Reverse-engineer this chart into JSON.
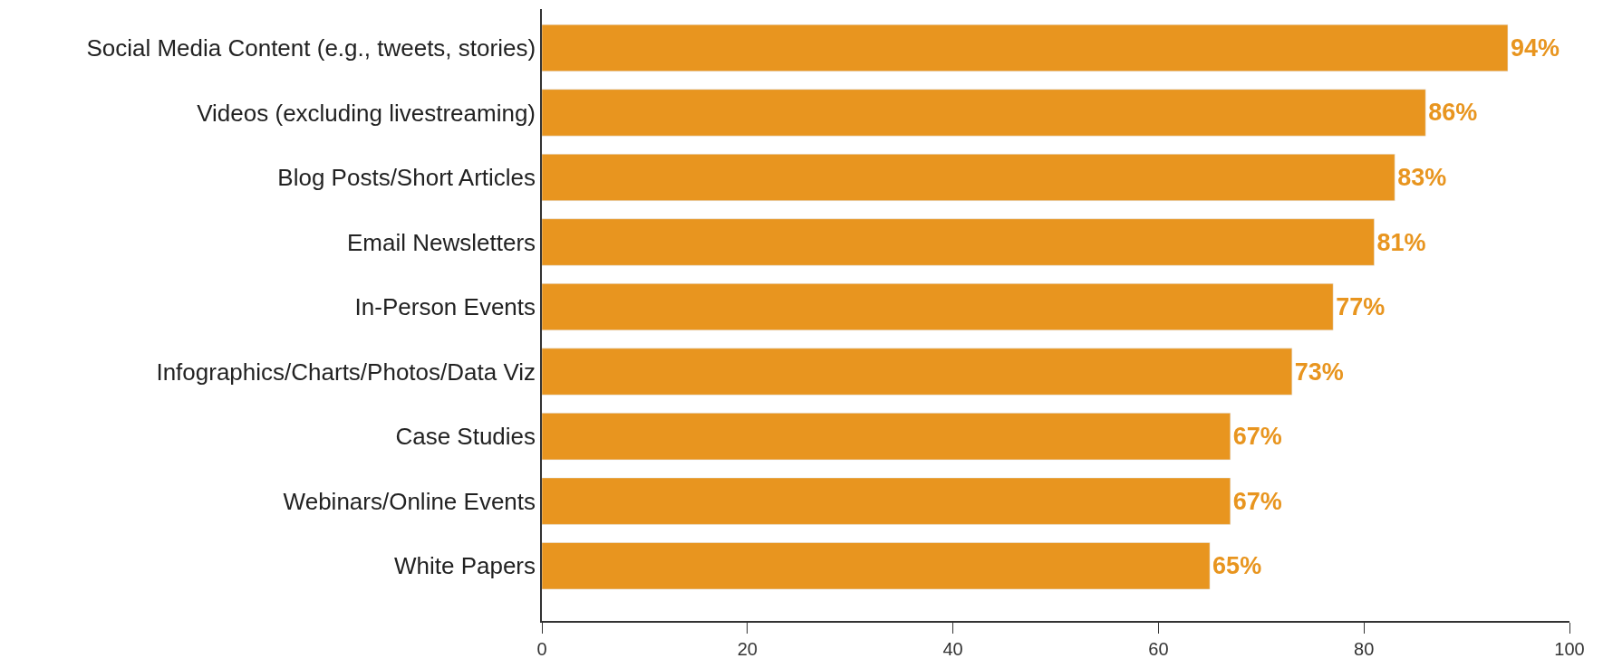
{
  "chart_data": {
    "type": "bar",
    "orientation": "horizontal",
    "categories": [
      "Social Media Content (e.g., tweets, stories)",
      "Videos (excluding livestreaming)",
      "Blog Posts/Short Articles",
      "Email Newsletters",
      "In-Person Events",
      "Infographics/Charts/Photos/Data Viz",
      "Case Studies",
      "Webinars/Online Events",
      "White Papers"
    ],
    "values": [
      94,
      86,
      83,
      81,
      77,
      73,
      67,
      67,
      65
    ],
    "value_labels": [
      "94%",
      "86%",
      "83%",
      "81%",
      "77%",
      "73%",
      "67%",
      "67%",
      "65%"
    ],
    "color": "#e8951f",
    "xlim": [
      0,
      100
    ],
    "xticks": [
      0,
      20,
      40,
      60,
      80,
      100
    ]
  }
}
